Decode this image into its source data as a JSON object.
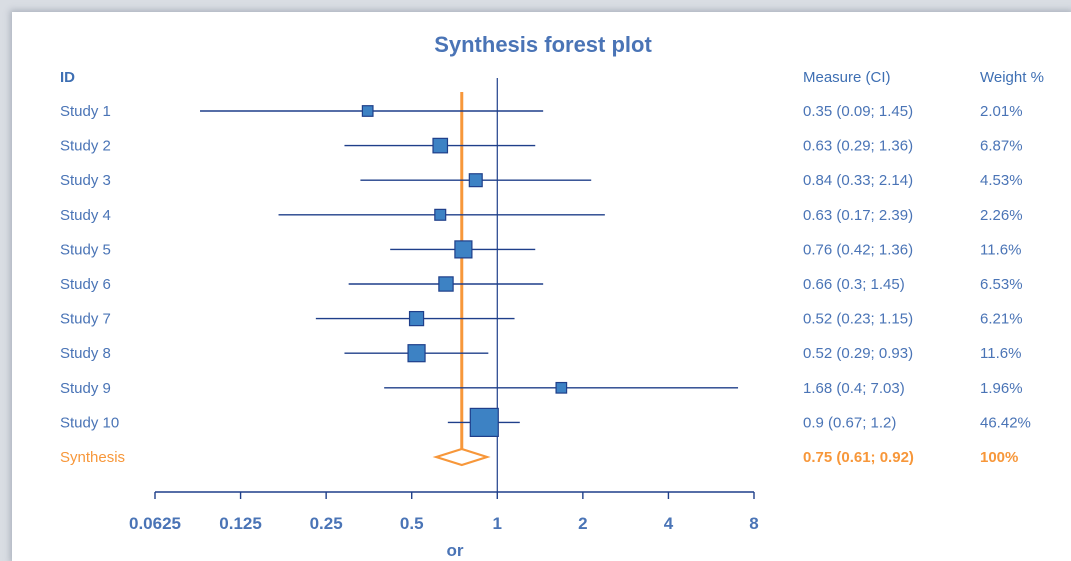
{
  "chart_data": {
    "type": "forest",
    "title": "Synthesis forest plot",
    "xlabel": "or",
    "x_scale": "log2",
    "xlim": [
      0.0625,
      8
    ],
    "xticks": [
      "0.0625",
      "0.125",
      "0.25",
      "0.5",
      "1",
      "2",
      "4",
      "8"
    ],
    "reference_line": 1,
    "headers": {
      "id": "ID",
      "measure": "Measure (CI)",
      "weight": "Weight %"
    },
    "studies": [
      {
        "id": "Study 1",
        "estimate": 0.35,
        "low": 0.09,
        "high": 1.45,
        "measure": "0.35 (0.09; 1.45)",
        "weight": 2.01,
        "weight_label": "2.01%"
      },
      {
        "id": "Study 2",
        "estimate": 0.63,
        "low": 0.29,
        "high": 1.36,
        "measure": "0.63 (0.29; 1.36)",
        "weight": 6.87,
        "weight_label": "6.87%"
      },
      {
        "id": "Study 3",
        "estimate": 0.84,
        "low": 0.33,
        "high": 2.14,
        "measure": "0.84 (0.33; 2.14)",
        "weight": 4.53,
        "weight_label": "4.53%"
      },
      {
        "id": "Study 4",
        "estimate": 0.63,
        "low": 0.17,
        "high": 2.39,
        "measure": "0.63 (0.17; 2.39)",
        "weight": 2.26,
        "weight_label": "2.26%"
      },
      {
        "id": "Study 5",
        "estimate": 0.76,
        "low": 0.42,
        "high": 1.36,
        "measure": "0.76 (0.42; 1.36)",
        "weight": 11.6,
        "weight_label": "11.6%"
      },
      {
        "id": "Study 6",
        "estimate": 0.66,
        "low": 0.3,
        "high": 1.45,
        "measure": "0.66 (0.3; 1.45)",
        "weight": 6.53,
        "weight_label": "6.53%"
      },
      {
        "id": "Study 7",
        "estimate": 0.52,
        "low": 0.23,
        "high": 1.15,
        "measure": "0.52 (0.23; 1.15)",
        "weight": 6.21,
        "weight_label": "6.21%"
      },
      {
        "id": "Study 8",
        "estimate": 0.52,
        "low": 0.29,
        "high": 0.93,
        "measure": "0.52 (0.29; 0.93)",
        "weight": 11.6,
        "weight_label": "11.6%"
      },
      {
        "id": "Study 9",
        "estimate": 1.68,
        "low": 0.4,
        "high": 7.03,
        "measure": "1.68 (0.4; 7.03)",
        "weight": 1.96,
        "weight_label": "1.96%"
      },
      {
        "id": "Study 10",
        "estimate": 0.9,
        "low": 0.67,
        "high": 1.2,
        "measure": "0.9 (0.67; 1.2)",
        "weight": 46.42,
        "weight_label": "46.42%"
      }
    ],
    "synthesis": {
      "id": "Synthesis",
      "estimate": 0.75,
      "low": 0.61,
      "high": 0.92,
      "measure": "0.75 (0.61; 0.92)",
      "weight_label": "100%"
    },
    "colors": {
      "text": "#4a74b6",
      "line": "#1f3f8a",
      "marker_fill": "#3d82c4",
      "marker_stroke": "#1f3f8a",
      "synthesis": "#f7973a"
    }
  }
}
